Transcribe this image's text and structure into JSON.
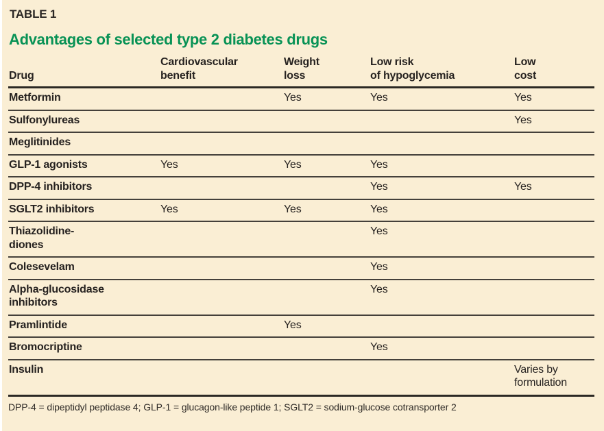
{
  "table_label": "TABLE 1",
  "title": "Advantages of selected type 2 diabetes drugs",
  "colors": {
    "background": "#FAEED4",
    "title_green": "#089255",
    "text": "#262220",
    "thin_rule": "#44403A",
    "thick_rule": "#2B2823",
    "page_left_edge": "#FFFFFF"
  },
  "table": {
    "columns": [
      "Drug",
      "Cardiovascular\nbenefit",
      "Weight\nloss",
      "Low risk\nof hypoglycemia",
      "Low\ncost"
    ],
    "rows": [
      {
        "name": "Metformin",
        "cv": "",
        "wl": "Yes",
        "risk": "Yes",
        "cost": "Yes"
      },
      {
        "name": "Sulfonylureas",
        "cv": "",
        "wl": "",
        "risk": "",
        "cost": "Yes"
      },
      {
        "name": "Meglitinides",
        "cv": "",
        "wl": "",
        "risk": "",
        "cost": ""
      },
      {
        "name": "GLP-1 agonists",
        "cv": "Yes",
        "wl": "Yes",
        "risk": "Yes",
        "cost": ""
      },
      {
        "name": "DPP-4 inhibitors",
        "cv": "",
        "wl": "",
        "risk": "Yes",
        "cost": "Yes"
      },
      {
        "name": "SGLT2 inhibitors",
        "cv": "Yes",
        "wl": "Yes",
        "risk": "Yes",
        "cost": ""
      },
      {
        "name": "Thiazolidine-\ndiones",
        "cv": "",
        "wl": "",
        "risk": "Yes",
        "cost": ""
      },
      {
        "name": "Colesevelam",
        "cv": "",
        "wl": "",
        "risk": "Yes",
        "cost": ""
      },
      {
        "name": "Alpha-glucosidase\ninhibitors",
        "cv": "",
        "wl": "",
        "risk": "Yes",
        "cost": ""
      },
      {
        "name": "Pramlintide",
        "cv": "",
        "wl": "Yes",
        "risk": "",
        "cost": ""
      },
      {
        "name": "Bromocriptine",
        "cv": "",
        "wl": "",
        "risk": "Yes",
        "cost": ""
      },
      {
        "name": "Insulin",
        "cv": "",
        "wl": "",
        "risk": "",
        "cost": "Varies by\nformulation"
      }
    ]
  },
  "footnote": "DPP-4 = dipeptidyl peptidase 4; GLP-1 = glucagon-like peptide 1; SGLT2 = sodium-glucose cotransporter 2"
}
